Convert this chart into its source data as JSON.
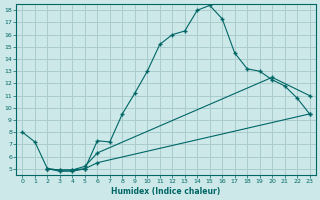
{
  "xlabel": "Humidex (Indice chaleur)",
  "background_color": "#cde8e8",
  "grid_color": "#aacccc",
  "line_color": "#006666",
  "xlim": [
    -0.5,
    23.5
  ],
  "ylim": [
    4.5,
    18.5
  ],
  "xticks": [
    0,
    1,
    2,
    3,
    4,
    5,
    6,
    7,
    8,
    9,
    10,
    11,
    12,
    13,
    14,
    15,
    16,
    17,
    18,
    19,
    20,
    21,
    22,
    23
  ],
  "yticks": [
    5,
    6,
    7,
    8,
    9,
    10,
    11,
    12,
    13,
    14,
    15,
    16,
    17,
    18
  ],
  "curve1_x": [
    0,
    1,
    2,
    3,
    4,
    5,
    6,
    7,
    8,
    9,
    10,
    11,
    12,
    13,
    14,
    15,
    16,
    17,
    18,
    19,
    20,
    21,
    22,
    23
  ],
  "curve1_y": [
    8.0,
    7.2,
    5.0,
    4.8,
    4.8,
    5.0,
    7.3,
    7.2,
    9.5,
    11.2,
    13.0,
    15.2,
    16.0,
    16.3,
    18.0,
    18.4,
    17.3,
    14.5,
    13.2,
    13.0,
    12.3,
    11.8,
    10.8,
    9.5
  ],
  "curve2_x": [
    2,
    3,
    4,
    5,
    6,
    20,
    23
  ],
  "curve2_y": [
    5.0,
    4.9,
    4.9,
    5.2,
    6.3,
    12.5,
    11.0
  ],
  "curve3_x": [
    2,
    3,
    4,
    5,
    6,
    23
  ],
  "curve3_y": [
    5.0,
    4.9,
    4.9,
    5.0,
    5.5,
    9.5
  ]
}
